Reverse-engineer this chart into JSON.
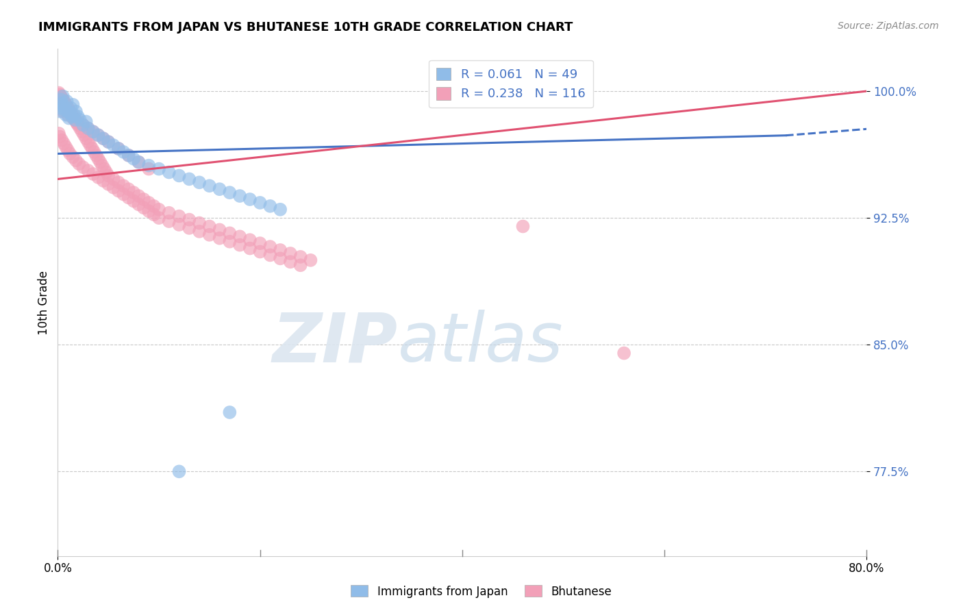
{
  "title": "IMMIGRANTS FROM JAPAN VS BHUTANESE 10TH GRADE CORRELATION CHART",
  "source": "Source: ZipAtlas.com",
  "ylabel": "10th Grade",
  "watermark_zip": "ZIP",
  "watermark_atlas": "atlas",
  "legend_japan_label": "Immigrants from Japan",
  "legend_bhutan_label": "Bhutanese",
  "R_japan": 0.061,
  "N_japan": 49,
  "R_bhutan": 0.238,
  "N_bhutan": 116,
  "japan_color": "#90bce8",
  "bhutan_color": "#f2a0b8",
  "japan_line_color": "#4472c4",
  "bhutan_line_color": "#e05070",
  "xmin": 0.0,
  "xmax": 0.8,
  "ymin": 0.725,
  "ymax": 1.025,
  "ytick_vals": [
    0.775,
    0.85,
    0.925,
    1.0
  ],
  "ytick_labels": [
    "77.5%",
    "85.0%",
    "92.5%",
    "100.0%"
  ],
  "xtick_vals": [
    0.0,
    0.8
  ],
  "xtick_labels": [
    "0.0%",
    "80.0%"
  ],
  "japan_x": [
    0.001,
    0.002,
    0.003,
    0.004,
    0.005,
    0.006,
    0.007,
    0.008,
    0.009,
    0.01,
    0.011,
    0.012,
    0.013,
    0.014,
    0.015,
    0.016,
    0.017,
    0.018,
    0.02,
    0.022,
    0.025,
    0.028,
    0.03,
    0.035,
    0.04,
    0.045,
    0.05,
    0.055,
    0.06,
    0.065,
    0.07,
    0.075,
    0.08,
    0.09,
    0.1,
    0.11,
    0.12,
    0.13,
    0.14,
    0.15,
    0.16,
    0.17,
    0.18,
    0.19,
    0.2,
    0.21,
    0.22,
    0.17,
    0.12
  ],
  "japan_y": [
    0.99,
    0.988,
    0.995,
    0.993,
    0.997,
    0.991,
    0.989,
    0.986,
    0.994,
    0.988,
    0.984,
    0.987,
    0.99,
    0.985,
    0.992,
    0.986,
    0.983,
    0.988,
    0.985,
    0.983,
    0.98,
    0.982,
    0.978,
    0.976,
    0.974,
    0.972,
    0.97,
    0.968,
    0.966,
    0.964,
    0.962,
    0.96,
    0.958,
    0.956,
    0.954,
    0.952,
    0.95,
    0.948,
    0.946,
    0.944,
    0.942,
    0.94,
    0.938,
    0.936,
    0.934,
    0.932,
    0.93,
    0.81,
    0.775
  ],
  "bhutan_x": [
    0.001,
    0.002,
    0.003,
    0.004,
    0.005,
    0.006,
    0.007,
    0.008,
    0.009,
    0.01,
    0.011,
    0.012,
    0.013,
    0.014,
    0.015,
    0.016,
    0.017,
    0.018,
    0.019,
    0.02,
    0.022,
    0.024,
    0.026,
    0.028,
    0.03,
    0.032,
    0.034,
    0.036,
    0.038,
    0.04,
    0.042,
    0.044,
    0.046,
    0.048,
    0.05,
    0.055,
    0.06,
    0.065,
    0.07,
    0.075,
    0.08,
    0.085,
    0.09,
    0.095,
    0.1,
    0.11,
    0.12,
    0.13,
    0.14,
    0.15,
    0.16,
    0.17,
    0.18,
    0.19,
    0.2,
    0.21,
    0.22,
    0.23,
    0.24,
    0.25,
    0.001,
    0.002,
    0.004,
    0.006,
    0.008,
    0.01,
    0.012,
    0.015,
    0.018,
    0.021,
    0.025,
    0.03,
    0.035,
    0.04,
    0.045,
    0.05,
    0.055,
    0.06,
    0.065,
    0.07,
    0.075,
    0.08,
    0.085,
    0.09,
    0.095,
    0.1,
    0.11,
    0.12,
    0.13,
    0.14,
    0.15,
    0.16,
    0.17,
    0.18,
    0.19,
    0.2,
    0.21,
    0.22,
    0.23,
    0.24,
    0.005,
    0.01,
    0.015,
    0.02,
    0.025,
    0.03,
    0.035,
    0.04,
    0.045,
    0.05,
    0.06,
    0.07,
    0.08,
    0.09,
    0.46,
    0.56
  ],
  "bhutan_y": [
    0.999,
    0.998,
    0.997,
    0.996,
    0.995,
    0.994,
    0.993,
    0.992,
    0.991,
    0.99,
    0.989,
    0.988,
    0.987,
    0.986,
    0.985,
    0.984,
    0.983,
    0.982,
    0.981,
    0.98,
    0.978,
    0.976,
    0.974,
    0.972,
    0.97,
    0.968,
    0.966,
    0.964,
    0.962,
    0.96,
    0.958,
    0.956,
    0.954,
    0.952,
    0.95,
    0.948,
    0.946,
    0.944,
    0.942,
    0.94,
    0.938,
    0.936,
    0.934,
    0.932,
    0.93,
    0.928,
    0.926,
    0.924,
    0.922,
    0.92,
    0.918,
    0.916,
    0.914,
    0.912,
    0.91,
    0.908,
    0.906,
    0.904,
    0.902,
    0.9,
    0.975,
    0.973,
    0.971,
    0.969,
    0.967,
    0.965,
    0.963,
    0.961,
    0.959,
    0.957,
    0.955,
    0.953,
    0.951,
    0.949,
    0.947,
    0.945,
    0.943,
    0.941,
    0.939,
    0.937,
    0.935,
    0.933,
    0.931,
    0.929,
    0.927,
    0.925,
    0.923,
    0.921,
    0.919,
    0.917,
    0.915,
    0.913,
    0.911,
    0.909,
    0.907,
    0.905,
    0.903,
    0.901,
    0.899,
    0.897,
    0.988,
    0.986,
    0.984,
    0.982,
    0.98,
    0.978,
    0.976,
    0.974,
    0.972,
    0.97,
    0.966,
    0.962,
    0.958,
    0.954,
    0.92,
    0.845
  ]
}
